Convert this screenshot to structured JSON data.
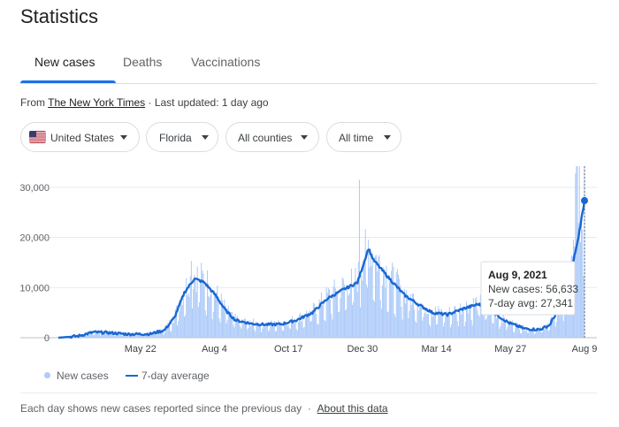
{
  "page": {
    "title": "Statistics",
    "tabs": [
      {
        "label": "New cases",
        "active": true
      },
      {
        "label": "Deaths",
        "active": false
      },
      {
        "label": "Vaccinations",
        "active": false
      }
    ],
    "source_prefix": "From ",
    "source_name": "The New York Times",
    "source_suffix": " · Last updated: 1 day ago",
    "filters": [
      {
        "label": "United States",
        "icon": "us-flag-icon"
      },
      {
        "label": "Florida"
      },
      {
        "label": "All counties"
      },
      {
        "label": "All time"
      }
    ],
    "legend": {
      "new_cases": "New cases",
      "avg": "7-day average"
    },
    "tooltip": {
      "date": "Aug 9, 2021",
      "new_cases": "New cases: 56,633",
      "avg": "7-day avg: 27,341"
    },
    "footer_text": "Each day shows new cases reported since the previous day",
    "footer_sep": "·",
    "about_link": "About this data",
    "colors": {
      "bar": "#aecbfa",
      "line": "#1967d2",
      "accent": "#1a73e8"
    }
  },
  "chart_data": {
    "type": "bar",
    "x_range": [
      "Mar 1, 2020",
      "Aug 9, 2021"
    ],
    "ylim": [
      0,
      30000
    ],
    "yticks": [
      "0",
      "10,000",
      "20,000",
      "30,000"
    ],
    "xticks": [
      "May 22",
      "Aug 4",
      "Oct 17",
      "Dec 30",
      "Mar 14",
      "May 27",
      "Aug 9"
    ],
    "grid": true,
    "legend_position": "bottom-left",
    "series": [
      {
        "name": "New cases",
        "type": "bar",
        "values_note": "daily values approximated from 7-day average with weekly reporting variation",
        "peaks": [
          {
            "date": "Jul 12, 2020",
            "value": 15300
          },
          {
            "date": "Dec 27, 2020",
            "value": 31500
          },
          {
            "date": "Aug 9, 2021",
            "value": 56633
          }
        ]
      },
      {
        "name": "7-day average",
        "type": "line",
        "points": [
          [
            "Mar 1, 2020",
            0
          ],
          [
            "Mar 20, 2020",
            300
          ],
          [
            "Apr 5, 2020",
            1100
          ],
          [
            "Apr 20, 2020",
            1000
          ],
          [
            "May 10, 2020",
            700
          ],
          [
            "Jun 1, 2020",
            750
          ],
          [
            "Jun 15, 2020",
            1500
          ],
          [
            "Jun 25, 2020",
            4000
          ],
          [
            "Jul 5, 2020",
            9000
          ],
          [
            "Jul 15, 2020",
            11800
          ],
          [
            "Jul 25, 2020",
            11000
          ],
          [
            "Aug 5, 2020",
            8500
          ],
          [
            "Aug 15, 2020",
            5500
          ],
          [
            "Aug 25, 2020",
            3500
          ],
          [
            "Sep 10, 2020",
            2800
          ],
          [
            "Sep 25, 2020",
            2600
          ],
          [
            "Oct 10, 2020",
            2700
          ],
          [
            "Oct 25, 2020",
            3500
          ],
          [
            "Nov 10, 2020",
            5000
          ],
          [
            "Nov 25, 2020",
            7800
          ],
          [
            "Dec 10, 2020",
            9500
          ],
          [
            "Dec 25, 2020",
            11000
          ],
          [
            "Jan 5, 2021",
            17800
          ],
          [
            "Jan 10, 2021",
            15500
          ],
          [
            "Jan 25, 2021",
            12000
          ],
          [
            "Feb 10, 2021",
            8500
          ],
          [
            "Feb 25, 2021",
            6500
          ],
          [
            "Mar 10, 2021",
            5000
          ],
          [
            "Mar 25, 2021",
            4600
          ],
          [
            "Apr 10, 2021",
            5800
          ],
          [
            "Apr 25, 2021",
            6700
          ],
          [
            "May 10, 2021",
            5000
          ],
          [
            "May 25, 2021",
            3000
          ],
          [
            "Jun 10, 2021",
            1800
          ],
          [
            "Jun 25, 2021",
            1600
          ],
          [
            "Jul 5, 2021",
            2500
          ],
          [
            "Jul 15, 2021",
            6000
          ],
          [
            "Jul 25, 2021",
            12000
          ],
          [
            "Aug 2, 2021",
            19000
          ],
          [
            "Aug 9, 2021",
            27341
          ]
        ]
      }
    ],
    "tooltip": {
      "date": "Aug 9, 2021",
      "new_cases": 56633,
      "avg": 27341
    }
  }
}
